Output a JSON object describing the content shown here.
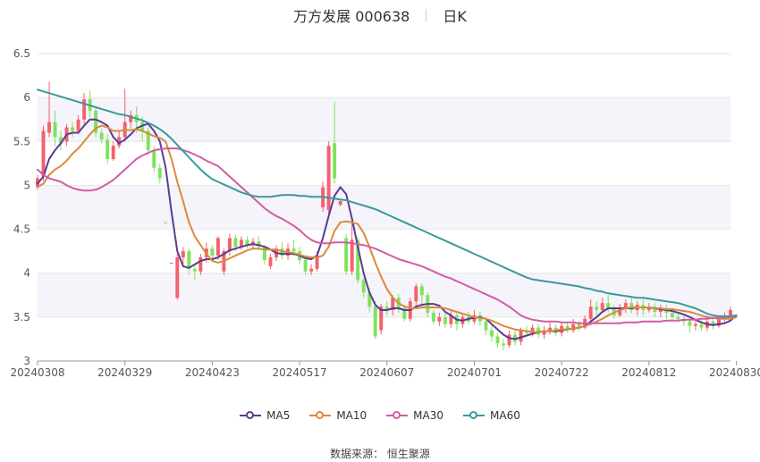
{
  "header": {
    "title": "万方发展 000638",
    "period": "日K"
  },
  "source": "数据来源： 恒生聚源",
  "colors": {
    "up": "#f4606c",
    "down": "#7ee35c",
    "grid": "#e6e6e6",
    "band": "#f4f4fa",
    "MA5": "#5a3b94",
    "MA10": "#db8a3c",
    "MA30": "#d45aa8",
    "MA60": "#3a9a9a"
  },
  "chart_data": {
    "type": "candlestick",
    "ylim": [
      3,
      6.5
    ],
    "yticks": [
      "3",
      "3.5",
      "4",
      "4.5",
      "5",
      "5.5",
      "6",
      "6.5"
    ],
    "xticks": [
      "20240308",
      "20240329",
      "20240423",
      "20240517",
      "20240607",
      "20240701",
      "20240722",
      "20240812",
      "20240830"
    ],
    "xtick_index": [
      0,
      15,
      30,
      45,
      60,
      75,
      90,
      105,
      120
    ],
    "legend": [
      "MA5",
      "MA10",
      "MA30",
      "MA60"
    ],
    "candles": [
      [
        4.98,
        5.08,
        5.12,
        4.95
      ],
      [
        5.1,
        5.62,
        5.68,
        5.05
      ],
      [
        5.6,
        5.72,
        6.18,
        5.55
      ],
      [
        5.72,
        5.55,
        5.85,
        5.45
      ],
      [
        5.55,
        5.48,
        5.62,
        5.4
      ],
      [
        5.5,
        5.66,
        5.7,
        5.45
      ],
      [
        5.66,
        5.62,
        5.72,
        5.55
      ],
      [
        5.62,
        5.75,
        5.8,
        5.58
      ],
      [
        5.75,
        5.98,
        6.05,
        5.7
      ],
      [
        5.98,
        5.85,
        6.08,
        5.78
      ],
      [
        5.85,
        5.6,
        5.9,
        5.55
      ],
      [
        5.6,
        5.52,
        5.65,
        5.48
      ],
      [
        5.52,
        5.3,
        5.58,
        5.25
      ],
      [
        5.3,
        5.45,
        5.5,
        5.28
      ],
      [
        5.45,
        5.55,
        5.62,
        5.42
      ],
      [
        5.55,
        5.72,
        6.1,
        5.5
      ],
      [
        5.72,
        5.8,
        5.85,
        5.65
      ],
      [
        5.8,
        5.72,
        5.9,
        5.6
      ],
      [
        5.72,
        5.62,
        5.78,
        5.5
      ],
      [
        5.62,
        5.4,
        5.66,
        5.35
      ],
      [
        5.4,
        5.2,
        5.45,
        5.15
      ],
      [
        5.2,
        5.08,
        5.25,
        5.02
      ],
      [
        4.58,
        4.57,
        4.58,
        4.56
      ],
      [
        4.12,
        4.12,
        4.12,
        4.12
      ],
      [
        3.72,
        4.18,
        4.22,
        3.7
      ],
      [
        4.18,
        4.25,
        4.3,
        4.08
      ],
      [
        4.25,
        4.05,
        4.28,
        3.98
      ],
      [
        4.05,
        4.02,
        4.1,
        3.92
      ],
      [
        4.02,
        4.18,
        4.22,
        3.98
      ],
      [
        4.18,
        4.28,
        4.35,
        4.12
      ],
      [
        4.28,
        4.2,
        4.32,
        4.15
      ],
      [
        4.2,
        4.4,
        4.42,
        4.15
      ],
      [
        4.02,
        4.25,
        4.28,
        3.98
      ],
      [
        4.25,
        4.4,
        4.45,
        4.2
      ],
      [
        4.4,
        4.3,
        4.44,
        4.25
      ],
      [
        4.3,
        4.38,
        4.42,
        4.26
      ],
      [
        4.38,
        4.32,
        4.42,
        4.28
      ],
      [
        4.32,
        4.36,
        4.4,
        4.28
      ],
      [
        4.36,
        4.3,
        4.42,
        4.26
      ],
      [
        4.3,
        4.15,
        4.32,
        4.1
      ],
      [
        4.08,
        4.18,
        4.22,
        4.05
      ],
      [
        4.18,
        4.28,
        4.32,
        4.14
      ],
      [
        4.28,
        4.2,
        4.35,
        4.16
      ],
      [
        4.2,
        4.28,
        4.34,
        4.15
      ],
      [
        4.28,
        4.25,
        4.38,
        4.2
      ],
      [
        4.25,
        4.15,
        4.3,
        4.1
      ],
      [
        4.15,
        4.02,
        4.2,
        3.98
      ],
      [
        4.02,
        4.05,
        4.1,
        3.98
      ],
      [
        4.05,
        4.2,
        4.25,
        4.02
      ],
      [
        4.75,
        4.98,
        5.05,
        4.7
      ],
      [
        4.72,
        5.45,
        5.5,
        4.68
      ],
      [
        5.48,
        5.08,
        5.95,
        5.02
      ],
      [
        4.78,
        4.82,
        4.84,
        4.76
      ],
      [
        4.4,
        4.02,
        4.45,
        3.98
      ],
      [
        4.02,
        4.38,
        4.6,
        3.98
      ],
      [
        4.38,
        3.92,
        4.42,
        3.88
      ],
      [
        3.92,
        3.78,
        3.95,
        3.72
      ],
      [
        3.78,
        3.62,
        3.82,
        3.55
      ],
      [
        3.62,
        3.28,
        3.68,
        3.25
      ],
      [
        3.35,
        3.62,
        3.65,
        3.3
      ],
      [
        3.62,
        3.58,
        3.68,
        3.52
      ],
      [
        3.58,
        3.72,
        3.75,
        3.52
      ],
      [
        3.72,
        3.6,
        3.76,
        3.55
      ],
      [
        3.6,
        3.48,
        3.64,
        3.45
      ],
      [
        3.48,
        3.68,
        3.72,
        3.45
      ],
      [
        3.68,
        3.85,
        3.88,
        3.62
      ],
      [
        3.85,
        3.75,
        3.88,
        3.6
      ],
      [
        3.75,
        3.55,
        3.78,
        3.5
      ],
      [
        3.55,
        3.45,
        3.58,
        3.42
      ],
      [
        3.45,
        3.5,
        3.55,
        3.4
      ],
      [
        3.5,
        3.42,
        3.54,
        3.38
      ],
      [
        3.42,
        3.52,
        3.58,
        3.38
      ],
      [
        3.52,
        3.42,
        3.56,
        3.35
      ],
      [
        3.42,
        3.5,
        3.55,
        3.38
      ],
      [
        3.5,
        3.45,
        3.56,
        3.42
      ],
      [
        3.45,
        3.52,
        3.58,
        3.42
      ],
      [
        3.52,
        3.45,
        3.56,
        3.4
      ],
      [
        3.45,
        3.35,
        3.48,
        3.3
      ],
      [
        3.35,
        3.28,
        3.4,
        3.22
      ],
      [
        3.28,
        3.2,
        3.32,
        3.15
      ],
      [
        3.2,
        3.18,
        3.25,
        3.12
      ],
      [
        3.18,
        3.3,
        3.35,
        3.15
      ],
      [
        3.3,
        3.22,
        3.36,
        3.18
      ],
      [
        3.22,
        3.35,
        3.38,
        3.18
      ],
      [
        3.35,
        3.32,
        3.4,
        3.28
      ],
      [
        3.32,
        3.38,
        3.42,
        3.28
      ],
      [
        3.38,
        3.3,
        3.42,
        3.26
      ],
      [
        3.3,
        3.35,
        3.4,
        3.25
      ],
      [
        3.35,
        3.38,
        3.45,
        3.3
      ],
      [
        3.38,
        3.32,
        3.42,
        3.28
      ],
      [
        3.32,
        3.4,
        3.45,
        3.28
      ],
      [
        3.4,
        3.35,
        3.44,
        3.32
      ],
      [
        3.35,
        3.42,
        3.48,
        3.32
      ],
      [
        3.42,
        3.38,
        3.46,
        3.34
      ],
      [
        3.38,
        3.48,
        3.52,
        3.36
      ],
      [
        3.48,
        3.62,
        3.7,
        3.45
      ],
      [
        3.62,
        3.58,
        3.68,
        3.52
      ],
      [
        3.58,
        3.66,
        3.72,
        3.55
      ],
      [
        3.66,
        3.6,
        3.75,
        3.55
      ],
      [
        3.6,
        3.52,
        3.64,
        3.48
      ],
      [
        3.52,
        3.6,
        3.65,
        3.5
      ],
      [
        3.6,
        3.66,
        3.7,
        3.55
      ],
      [
        3.66,
        3.58,
        3.72,
        3.54
      ],
      [
        3.58,
        3.64,
        3.68,
        3.52
      ],
      [
        3.64,
        3.58,
        3.7,
        3.52
      ],
      [
        3.58,
        3.62,
        3.66,
        3.55
      ],
      [
        3.62,
        3.56,
        3.66,
        3.5
      ],
      [
        3.56,
        3.6,
        3.64,
        3.5
      ],
      [
        3.6,
        3.55,
        3.64,
        3.48
      ],
      [
        3.55,
        3.5,
        3.58,
        3.45
      ],
      [
        3.5,
        3.48,
        3.55,
        3.44
      ],
      [
        3.48,
        3.45,
        3.52,
        3.4
      ],
      [
        3.45,
        3.4,
        3.48,
        3.32
      ],
      [
        3.4,
        3.42,
        3.46,
        3.35
      ],
      [
        3.42,
        3.38,
        3.48,
        3.34
      ],
      [
        3.38,
        3.45,
        3.52,
        3.34
      ],
      [
        3.45,
        3.4,
        3.5,
        3.36
      ],
      [
        3.4,
        3.48,
        3.52,
        3.38
      ],
      [
        3.48,
        3.52,
        3.55,
        3.45
      ],
      [
        3.52,
        3.58,
        3.62,
        3.48
      ]
    ],
    "series": [
      {
        "name": "MA5",
        "values": [
          5.02,
          5.1,
          5.3,
          5.4,
          5.48,
          5.58,
          5.6,
          5.6,
          5.68,
          5.75,
          5.75,
          5.72,
          5.68,
          5.55,
          5.48,
          5.52,
          5.58,
          5.65,
          5.68,
          5.7,
          5.62,
          5.5,
          5.2,
          4.7,
          4.25,
          4.08,
          4.06,
          4.1,
          4.14,
          4.16,
          4.16,
          4.18,
          4.22,
          4.26,
          4.28,
          4.3,
          4.32,
          4.33,
          4.32,
          4.3,
          4.27,
          4.23,
          4.22,
          4.22,
          4.22,
          4.2,
          4.17,
          4.16,
          4.2,
          4.4,
          4.65,
          4.88,
          4.98,
          4.9,
          4.62,
          4.3,
          4.0,
          3.78,
          3.64,
          3.58,
          3.58,
          3.6,
          3.6,
          3.58,
          3.58,
          3.62,
          3.64,
          3.65,
          3.65,
          3.63,
          3.56,
          3.52,
          3.47,
          3.46,
          3.48,
          3.49,
          3.5,
          3.48,
          3.42,
          3.36,
          3.3,
          3.26,
          3.25,
          3.27,
          3.29,
          3.31,
          3.33,
          3.34,
          3.34,
          3.34,
          3.35,
          3.36,
          3.37,
          3.38,
          3.4,
          3.45,
          3.5,
          3.56,
          3.6,
          3.6,
          3.6,
          3.6,
          3.6,
          3.61,
          3.61,
          3.61,
          3.6,
          3.59,
          3.58,
          3.57,
          3.55,
          3.53,
          3.5,
          3.47,
          3.44,
          3.42,
          3.41,
          3.42,
          3.43,
          3.46,
          3.52
        ]
      },
      {
        "name": "MA10",
        "values": [
          4.98,
          5.02,
          5.12,
          5.18,
          5.22,
          5.28,
          5.36,
          5.42,
          5.5,
          5.58,
          5.65,
          5.68,
          5.66,
          5.62,
          5.62,
          5.63,
          5.63,
          5.64,
          5.62,
          5.59,
          5.56,
          5.54,
          5.5,
          5.3,
          5.04,
          4.82,
          4.58,
          4.42,
          4.32,
          4.22,
          4.14,
          4.12,
          4.14,
          4.17,
          4.2,
          4.23,
          4.26,
          4.28,
          4.28,
          4.27,
          4.27,
          4.27,
          4.25,
          4.24,
          4.23,
          4.21,
          4.19,
          4.18,
          4.18,
          4.2,
          4.3,
          4.48,
          4.58,
          4.59,
          4.58,
          4.56,
          4.46,
          4.3,
          4.12,
          3.96,
          3.82,
          3.72,
          3.66,
          3.62,
          3.6,
          3.6,
          3.61,
          3.61,
          3.61,
          3.61,
          3.6,
          3.58,
          3.56,
          3.54,
          3.52,
          3.5,
          3.49,
          3.48,
          3.46,
          3.43,
          3.4,
          3.38,
          3.36,
          3.35,
          3.34,
          3.33,
          3.33,
          3.34,
          3.34,
          3.35,
          3.36,
          3.36,
          3.37,
          3.38,
          3.4,
          3.42,
          3.45,
          3.48,
          3.52,
          3.55,
          3.58,
          3.6,
          3.61,
          3.61,
          3.61,
          3.61,
          3.6,
          3.6,
          3.59,
          3.59,
          3.58,
          3.57,
          3.56,
          3.54,
          3.52,
          3.5,
          3.49,
          3.48,
          3.48,
          3.48,
          3.5
        ]
      },
      {
        "name": "MA30",
        "values": [
          5.18,
          5.12,
          5.08,
          5.06,
          5.04,
          5.0,
          4.97,
          4.95,
          4.94,
          4.94,
          4.95,
          4.98,
          5.02,
          5.06,
          5.12,
          5.18,
          5.24,
          5.3,
          5.34,
          5.37,
          5.4,
          5.41,
          5.42,
          5.42,
          5.42,
          5.4,
          5.38,
          5.35,
          5.32,
          5.28,
          5.25,
          5.22,
          5.16,
          5.1,
          5.04,
          4.98,
          4.92,
          4.86,
          4.8,
          4.74,
          4.69,
          4.65,
          4.62,
          4.58,
          4.54,
          4.49,
          4.43,
          4.38,
          4.35,
          4.34,
          4.34,
          4.35,
          4.35,
          4.35,
          4.34,
          4.33,
          4.32,
          4.3,
          4.28,
          4.25,
          4.22,
          4.19,
          4.16,
          4.14,
          4.12,
          4.1,
          4.08,
          4.05,
          4.02,
          3.99,
          3.96,
          3.94,
          3.91,
          3.88,
          3.85,
          3.82,
          3.79,
          3.76,
          3.73,
          3.7,
          3.66,
          3.62,
          3.57,
          3.52,
          3.49,
          3.47,
          3.46,
          3.45,
          3.45,
          3.45,
          3.44,
          3.44,
          3.44,
          3.43,
          3.43,
          3.43,
          3.43,
          3.43,
          3.43,
          3.43,
          3.43,
          3.44,
          3.44,
          3.44,
          3.45,
          3.45,
          3.45,
          3.45,
          3.46,
          3.46,
          3.46,
          3.47,
          3.47,
          3.47,
          3.48,
          3.48,
          3.49,
          3.49,
          3.5,
          3.5,
          3.51
        ]
      },
      {
        "name": "MA60",
        "values": [
          6.09,
          6.07,
          6.05,
          6.03,
          6.01,
          5.99,
          5.97,
          5.95,
          5.93,
          5.91,
          5.89,
          5.87,
          5.85,
          5.83,
          5.81,
          5.8,
          5.78,
          5.76,
          5.74,
          5.71,
          5.68,
          5.64,
          5.59,
          5.53,
          5.46,
          5.39,
          5.32,
          5.25,
          5.18,
          5.12,
          5.07,
          5.04,
          5.01,
          4.98,
          4.95,
          4.92,
          4.9,
          4.88,
          4.87,
          4.87,
          4.87,
          4.88,
          4.89,
          4.89,
          4.89,
          4.88,
          4.88,
          4.87,
          4.87,
          4.87,
          4.86,
          4.85,
          4.84,
          4.83,
          4.81,
          4.79,
          4.77,
          4.75,
          4.73,
          4.7,
          4.67,
          4.64,
          4.61,
          4.58,
          4.55,
          4.52,
          4.49,
          4.46,
          4.43,
          4.4,
          4.37,
          4.34,
          4.31,
          4.28,
          4.25,
          4.22,
          4.19,
          4.16,
          4.13,
          4.1,
          4.07,
          4.04,
          4.01,
          3.98,
          3.95,
          3.93,
          3.92,
          3.91,
          3.9,
          3.89,
          3.88,
          3.87,
          3.86,
          3.85,
          3.83,
          3.82,
          3.8,
          3.79,
          3.77,
          3.76,
          3.75,
          3.74,
          3.73,
          3.72,
          3.72,
          3.71,
          3.7,
          3.69,
          3.68,
          3.67,
          3.66,
          3.64,
          3.62,
          3.6,
          3.57,
          3.54,
          3.52,
          3.51,
          3.51,
          3.51,
          3.52
        ]
      }
    ]
  }
}
